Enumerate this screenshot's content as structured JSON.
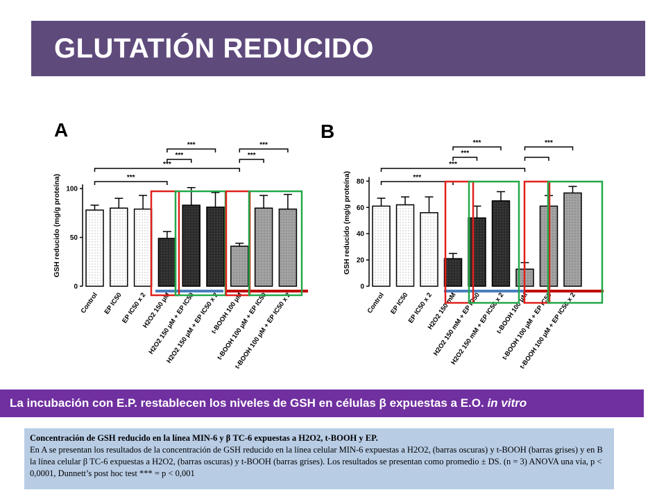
{
  "header": {
    "title": "GLUTATIÓN REDUCIDO"
  },
  "panels": {
    "a": "A",
    "b": "B"
  },
  "conclusion": {
    "text_main": "La incubación con E.P. restablecen los niveles de GSH en células β expuestas a E.O. ",
    "text_italic": "in vitro"
  },
  "caption": {
    "title": "Concentración de GSH reducido en la línea MIN-6 y β TC-6 expuestas a H2O2, t-BOOH y EP.",
    "body": "En A se presentan los resultados de la concentración de GSH reducido en la línea celular MIN-6 expuestas a H2O2, (barras oscuras) y t-BOOH (barras grises) y en B la línea celular β TC-6 expuestas a H2O2, (barras oscuras) y t-BOOH (barras grises).  Los resultados se presentan como promedio ± DS. (n = 3) ANOVA una vía, p < 0,0001, Dunnett’s post hoc test *** = p < 0,001"
  },
  "colors": {
    "header_bg": "#5f4a7c",
    "conclusion_bg": "#7030a0",
    "caption_bg": "#b8cce4",
    "highlight_red": "#e0201b",
    "highlight_green": "#22a84a",
    "baseline_blue": "#4a7fc0",
    "baseline_red": "#c00000",
    "bar_white": "#ffffff",
    "bar_dark": "#2b2b2b",
    "bar_gray": "#a3a3a3"
  },
  "chart_data": [
    {
      "panel": "A",
      "type": "bar",
      "ylabel": "GSH reducido (mg/g proteína)",
      "ylim": [
        0,
        110
      ],
      "yticks": [
        0,
        50,
        100
      ],
      "categories": [
        "Control",
        "EP IC50",
        "EP IC50 x 2",
        "H2O2 150 μM",
        "H2O2 150 μM + EP IC50",
        "H2O2 150 μM + EP IC50 x 2",
        "t-BOOH 100 μM",
        "t-BOOH 100 μM + EP IC50",
        "t-BOOH 100 μM + EP IC50 x 2"
      ],
      "groups": [
        "control",
        "control",
        "control",
        "h2o2",
        "h2o2",
        "h2o2",
        "tbooh",
        "tbooh",
        "tbooh"
      ],
      "values": [
        78,
        80,
        79,
        49,
        83,
        81,
        41,
        80,
        79
      ],
      "errors": [
        5,
        10,
        14,
        7,
        18,
        15,
        3,
        13,
        15
      ],
      "significance": [
        {
          "from": 0,
          "to": 3,
          "label": "***"
        },
        {
          "from": 0,
          "to": 6,
          "label": "***"
        },
        {
          "from": 3,
          "to": 4,
          "label": "***"
        },
        {
          "from": 3,
          "to": 5,
          "label": "***"
        },
        {
          "from": 6,
          "to": 7,
          "label": "***"
        },
        {
          "from": 6,
          "to": 8,
          "label": "***"
        }
      ]
    },
    {
      "panel": "B",
      "type": "bar",
      "ylabel": "GSH reducido (mg/g proteína)",
      "ylim": [
        0,
        86
      ],
      "yticks": [
        0,
        20,
        40,
        60,
        80
      ],
      "categories": [
        "Control",
        "EP IC50",
        "EP IC50 x 2",
        "H2O2 150 mM",
        "H2O2 150 mM + EP IC50",
        "H2O2 150 mM + EP IC50 x 2",
        "t-BOOH 100 μM",
        "t-BOOH 100 μM + EP IC50",
        "t-BOOH 100 μM + EP IC50 x 2"
      ],
      "groups": [
        "control",
        "control",
        "control",
        "h2o2",
        "h2o2",
        "h2o2",
        "tbooh",
        "tbooh",
        "tbooh"
      ],
      "values": [
        61,
        62,
        56,
        21,
        52,
        65,
        13,
        61,
        71
      ],
      "errors": [
        6,
        6,
        12,
        4,
        9,
        7,
        5,
        8,
        5
      ],
      "significance": [
        {
          "from": 0,
          "to": 3,
          "label": "***"
        },
        {
          "from": 0,
          "to": 6,
          "label": "***"
        },
        {
          "from": 3,
          "to": 4,
          "label": "***"
        },
        {
          "from": 3,
          "to": 5,
          "label": "***"
        },
        {
          "from": 6,
          "to": 7,
          "label": ""
        },
        {
          "from": 6,
          "to": 8,
          "label": "***"
        }
      ]
    }
  ]
}
